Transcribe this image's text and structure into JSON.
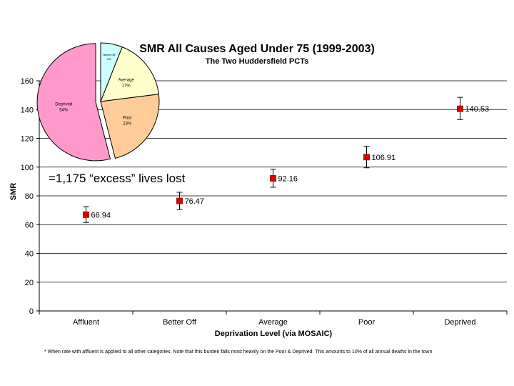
{
  "chart_data": [
    {
      "type": "scatter",
      "title": "SMR All Causes Aged Under 75 (1999-2003)",
      "subtitle": "The Two Huddersfield PCTs",
      "xlabel": "Deprivation Level (via MOSAIC)",
      "ylabel": "SMR",
      "ylim": [
        0,
        160
      ],
      "yticks": [
        0,
        20,
        40,
        60,
        80,
        100,
        120,
        140,
        160
      ],
      "grid": true,
      "categories": [
        "Affluent",
        "Better Off",
        "Average",
        "Poor",
        "Deprived"
      ],
      "values": [
        66.94,
        76.47,
        92.16,
        106.91,
        140.53
      ],
      "value_labels": [
        "66.94",
        "76.47",
        "92.16",
        "106.91",
        "140.53"
      ],
      "error_low": [
        61.5,
        70.5,
        86,
        99.5,
        133
      ],
      "error_high": [
        72.5,
        82.5,
        98.5,
        114.5,
        148.5
      ],
      "marker_color": "#e00000"
    },
    {
      "type": "pie",
      "slices": [
        {
          "label": "Better Off",
          "pct_label": "6%",
          "value": 6,
          "color": "#ccffff"
        },
        {
          "label": "Average",
          "pct_label": "17%",
          "value": 17,
          "color": "#ffffcc"
        },
        {
          "label": "Poor",
          "pct_label": "23%",
          "value": 23,
          "color": "#ffcc99"
        },
        {
          "label": "Deprived",
          "pct_label": "54%",
          "value": 54,
          "color": "#ff99cc"
        }
      ]
    }
  ],
  "callout": "=1,175 “excess” lives lost",
  "footnote": "* When rate with affluent is applied to all other categories. Note that this burden falls most heavily on the Poor & Deprived. This amounts to 10% of all annual deaths in the town"
}
